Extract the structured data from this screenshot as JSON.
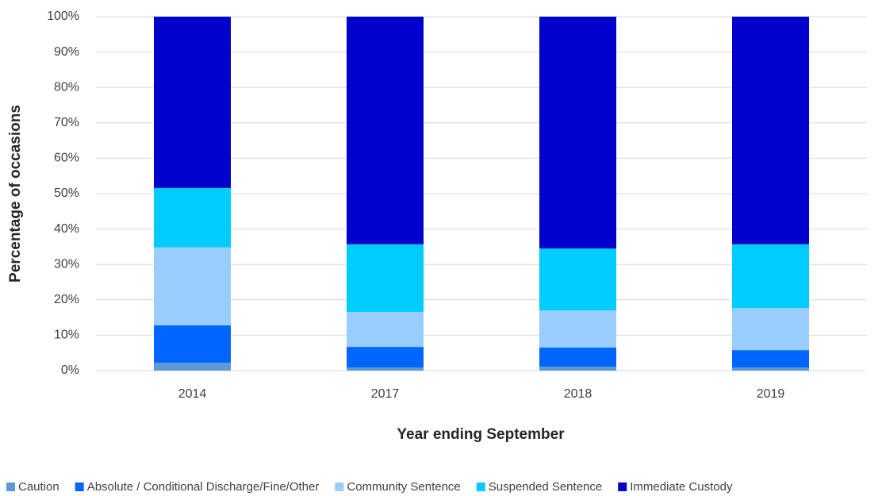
{
  "chart_data": {
    "type": "stacked_bar",
    "xlabel": "Year ending September",
    "ylabel": "Percentage of occasions",
    "categories": [
      "2014",
      "2017",
      "2018",
      "2019"
    ],
    "series": [
      {
        "name": "Caution",
        "color": "#5b9bd5",
        "values": [
          2.2,
          0.9,
          1.1,
          0.9
        ]
      },
      {
        "name": "Absolute / Conditional Discharge/Fine/Other",
        "color": "#0066ff",
        "values": [
          10.6,
          5.8,
          5.4,
          4.9
        ]
      },
      {
        "name": "Community Sentence",
        "color": "#99ccff",
        "values": [
          22.0,
          9.9,
          10.5,
          11.9
        ]
      },
      {
        "name": "Suspended Sentence",
        "color": "#00ccff",
        "values": [
          16.8,
          19.1,
          17.5,
          18.0
        ]
      },
      {
        "name": "Immediate Custody",
        "color": "#0000cc",
        "values": [
          48.4,
          64.3,
          65.5,
          64.3
        ]
      }
    ],
    "ylim": [
      0,
      100
    ],
    "yticks": [
      {
        "value": 0,
        "label": "0%"
      },
      {
        "value": 10,
        "label": "10%"
      },
      {
        "value": 20,
        "label": "20%"
      },
      {
        "value": 30,
        "label": "30%"
      },
      {
        "value": 40,
        "label": "40%"
      },
      {
        "value": 50,
        "label": "50%"
      },
      {
        "value": 60,
        "label": "60%"
      },
      {
        "value": 70,
        "label": "70%"
      },
      {
        "value": 80,
        "label": "80%"
      },
      {
        "value": 90,
        "label": "90%"
      },
      {
        "value": 100,
        "label": "100%"
      }
    ],
    "grid": true,
    "legend": "bottom"
  }
}
